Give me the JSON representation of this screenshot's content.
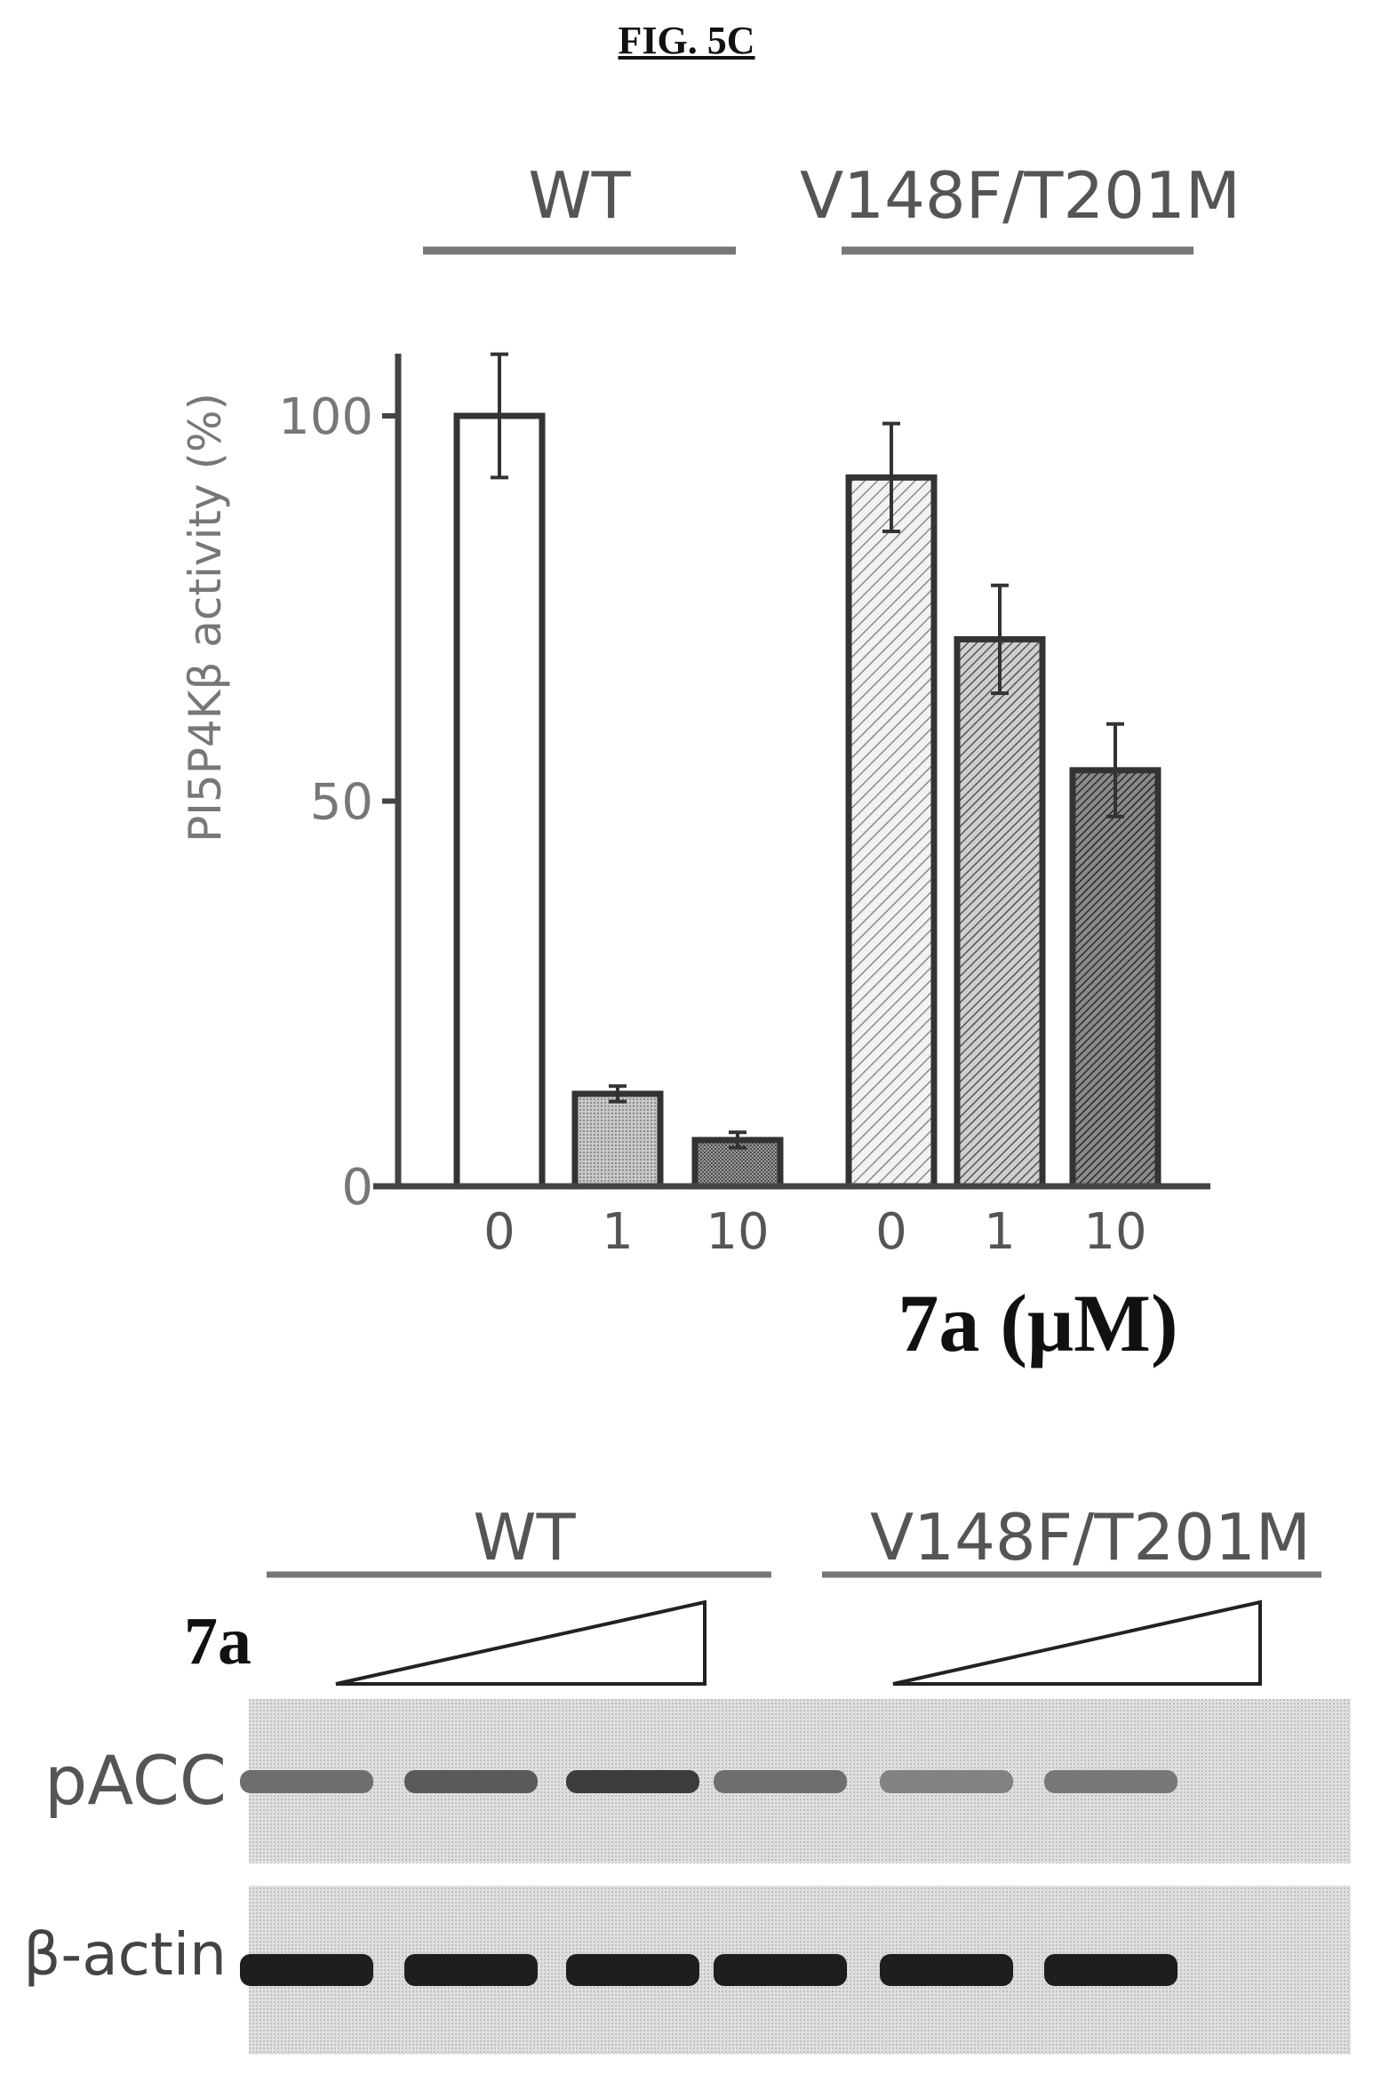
{
  "figure_label": "FIG. 5C",
  "chart_data": {
    "type": "bar",
    "ylabel": "PI5P4Kβ activity (%)",
    "xlabel": "7a (μM)",
    "ylim": [
      0,
      100
    ],
    "yticks": [
      0,
      50,
      100
    ],
    "groups": [
      {
        "name": "WT",
        "categories": [
          "0",
          "1",
          "10"
        ],
        "values": [
          100,
          12,
          6
        ],
        "errors": [
          8,
          1,
          1
        ],
        "fills": [
          "white",
          "light-stipple",
          "medium-stipple"
        ]
      },
      {
        "name": "V148F/T201M",
        "categories": [
          "0",
          "1",
          "10"
        ],
        "values": [
          92,
          71,
          54
        ],
        "errors": [
          7,
          7,
          6
        ],
        "fills": [
          "hatch-light",
          "hatch-medium",
          "hatch-dark"
        ]
      }
    ]
  },
  "blot": {
    "groups": [
      "WT",
      "V148F/T201M"
    ],
    "treatment_label": "7a",
    "rows": [
      {
        "label": "pACC",
        "intensities": [
          0.55,
          0.65,
          0.8,
          0.55,
          0.45,
          0.5
        ]
      },
      {
        "label": "β-actin",
        "intensities": [
          0.95,
          0.95,
          0.95,
          0.95,
          0.95,
          0.95
        ]
      }
    ]
  }
}
